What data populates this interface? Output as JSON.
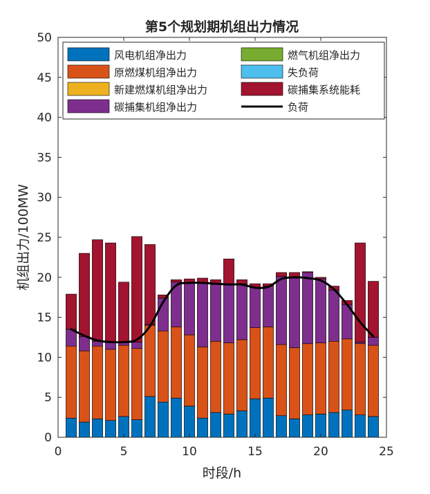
{
  "chart_data": {
    "type": "bar",
    "stacked": true,
    "title": "第5个规划期机组出力情况",
    "xlabel": "时段/h",
    "ylabel": "机组出力/100MW",
    "xlim": [
      0,
      25
    ],
    "ylim": [
      0,
      50
    ],
    "x_ticks": [
      0,
      5,
      10,
      15,
      20,
      25
    ],
    "y_ticks": [
      0,
      5,
      10,
      15,
      20,
      25,
      30,
      35,
      40,
      45,
      50
    ],
    "grid": false,
    "legend_position": "top",
    "x": [
      1,
      2,
      3,
      4,
      5,
      6,
      7,
      8,
      9,
      10,
      11,
      12,
      13,
      14,
      15,
      16,
      17,
      18,
      19,
      20,
      21,
      22,
      23,
      24
    ],
    "series": [
      {
        "name": "风电机组净出力",
        "color": "#0072BD",
        "values": [
          2.4,
          1.9,
          2.3,
          2.1,
          2.6,
          2.2,
          5.1,
          4.4,
          4.9,
          3.9,
          2.4,
          3.1,
          2.9,
          3.3,
          4.8,
          4.9,
          2.7,
          2.3,
          2.8,
          2.9,
          3.1,
          3.4,
          2.8,
          2.6
        ]
      },
      {
        "name": "原燃煤机组净出力",
        "color": "#D95319",
        "values": [
          9.0,
          8.9,
          9.1,
          8.9,
          8.9,
          8.9,
          8.9,
          8.9,
          8.9,
          8.9,
          8.9,
          8.9,
          8.9,
          8.9,
          8.9,
          8.9,
          8.9,
          8.9,
          8.9,
          8.9,
          8.9,
          8.9,
          8.9,
          8.9
        ]
      },
      {
        "name": "新建燃煤机组净出力",
        "color": "#EDB120",
        "values": [
          0,
          0,
          0,
          0,
          0,
          0,
          0,
          0,
          0,
          0,
          0,
          0,
          0,
          0,
          0,
          0,
          0,
          0,
          0,
          0,
          0,
          0,
          0,
          0
        ]
      },
      {
        "name": "碳捕集机组净出力",
        "color": "#7E2F8E",
        "values": [
          2.1,
          1.8,
          0.6,
          1.0,
          0.4,
          0.8,
          0.1,
          4.1,
          5.6,
          6.5,
          8.0,
          7.1,
          7.3,
          7.0,
          5.0,
          5.1,
          8.5,
          8.7,
          8.9,
          8.0,
          6.4,
          4.3,
          0.2,
          1.0
        ]
      },
      {
        "name": "燃气机组净出力",
        "color": "#77AC30",
        "values": [
          0,
          0,
          0,
          0,
          0,
          0,
          0,
          0,
          0,
          0,
          0,
          0,
          0,
          0,
          0,
          0,
          0,
          0,
          0,
          0,
          0,
          0,
          0,
          0
        ]
      },
      {
        "name": "失负荷",
        "color": "#4DBEEE",
        "values": [
          0,
          0,
          0,
          0,
          0,
          0,
          0,
          0,
          0,
          0,
          0,
          0,
          0,
          0,
          0,
          0,
          0,
          0,
          0,
          0,
          0,
          0,
          0,
          0
        ]
      },
      {
        "name": "碳捕集系统能耗",
        "color": "#A2142F",
        "values": [
          4.4,
          10.4,
          12.7,
          12.3,
          7.5,
          13.2,
          10.0,
          0.4,
          0.3,
          0.5,
          0.6,
          0.6,
          3.2,
          0.5,
          0.5,
          0.3,
          0.5,
          0.7,
          0.1,
          0.2,
          0.5,
          0.5,
          12.4,
          7.0
        ]
      }
    ],
    "load": {
      "name": "负荷",
      "color": "#000000",
      "values": [
        13.5,
        12.7,
        12.1,
        11.9,
        11.9,
        12.2,
        13.9,
        16.9,
        19.0,
        19.3,
        19.3,
        19.2,
        19.1,
        19.1,
        18.7,
        18.8,
        19.8,
        20.0,
        19.9,
        19.6,
        18.5,
        16.6,
        14.4,
        12.6
      ]
    }
  }
}
